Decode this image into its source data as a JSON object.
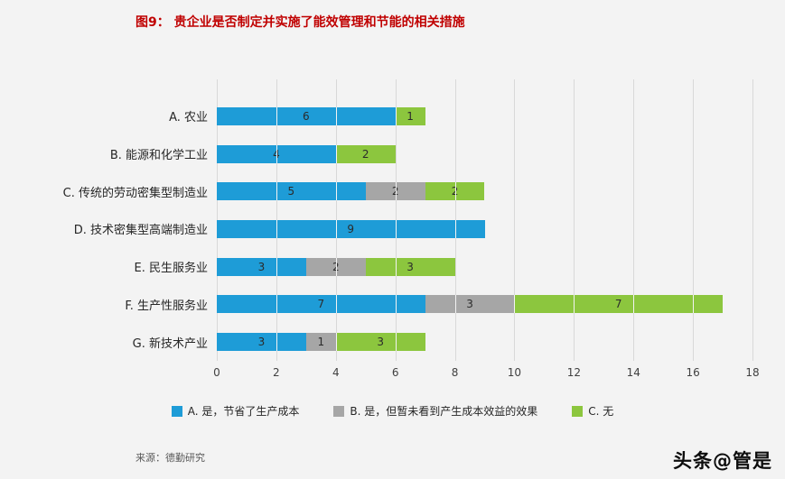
{
  "title": "图9：  贵企业是否制定并实施了能效管理和节能的相关措施",
  "source": "来源：德勤研究",
  "watermark": "头条@管是",
  "colors": {
    "title": "#c00000",
    "background": "#f3f3f3",
    "gridline": "#d8d8d8",
    "series_blue": "#1e9cd7",
    "series_gray": "#a6a6a6",
    "series_green": "#8cc63e"
  },
  "chart_data": {
    "type": "bar",
    "orientation": "horizontal",
    "stacked": true,
    "title": "图9：  贵企业是否制定并实施了能效管理和节能的相关措施",
    "categories": [
      "A. 农业",
      "B. 能源和化学工业",
      "C. 传统的劳动密集型制造业",
      "D. 技术密集型高端制造业",
      "E. 民生服务业",
      "F. 生产性服务业",
      "G. 新技术产业"
    ],
    "series": [
      {
        "name": "A. 是，节省了生产成本",
        "color": "#1e9cd7",
        "values": [
          6,
          4,
          5,
          9,
          3,
          7,
          3
        ]
      },
      {
        "name": "B. 是，但暂未看到产生成本效益的效果",
        "color": "#a6a6a6",
        "values": [
          0,
          0,
          2,
          0,
          2,
          3,
          1
        ]
      },
      {
        "name": "C. 无",
        "color": "#8cc63e",
        "values": [
          1,
          2,
          2,
          0,
          3,
          7,
          3
        ]
      }
    ],
    "totals": [
      7,
      6,
      9,
      9,
      8,
      17,
      7
    ],
    "xlabel": "",
    "ylabel": "",
    "xlim": [
      0,
      18
    ],
    "xticks": [
      0,
      2,
      4,
      6,
      8,
      10,
      12,
      14,
      16,
      18
    ],
    "grid": true,
    "legend_position": "bottom"
  }
}
